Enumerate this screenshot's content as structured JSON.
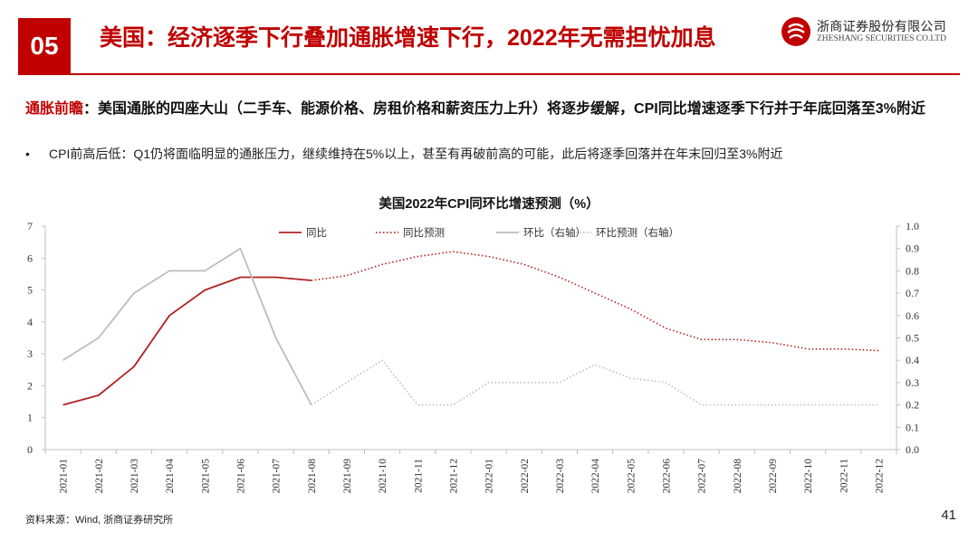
{
  "header": {
    "section_number": "05",
    "title": "美国：经济逐季下行叠加通胀增速下行，2022年无需担忧加息",
    "logo_cn": "浙商证券股份有限公司",
    "logo_en": "ZHESHANG SECURITIES CO.LTD"
  },
  "headline": {
    "lead": "通胀前瞻",
    "text": "：美国通胀的四座大山（二手车、能源价格、房租价格和薪资压力上升）将逐步缓解，CPI同比增速逐季下行并于年底回落至3%附近"
  },
  "bullet": {
    "marker": "•",
    "text": "CPI前高后低：Q1仍将面临明显的通胀压力，继续维持在5%以上，甚至有再破前高的可能，此后将逐季回落并在年末回归至3%附近"
  },
  "chart_data": {
    "type": "line",
    "title": "美国2022年CPI同环比增速预测（%）",
    "categories": [
      "2021-01",
      "2021-02",
      "2021-03",
      "2021-04",
      "2021-05",
      "2021-06",
      "2021-07",
      "2021-08",
      "2021-09",
      "2021-10",
      "2021-11",
      "2021-12",
      "2022-01",
      "2022-02",
      "2022-03",
      "2022-04",
      "2022-05",
      "2022-06",
      "2022-07",
      "2022-08",
      "2022-09",
      "2022-10",
      "2022-11",
      "2022-12"
    ],
    "left_axis": {
      "ylim": [
        0,
        7
      ],
      "ticks": [
        "0",
        "1",
        "2",
        "3",
        "4",
        "5",
        "6",
        "7"
      ]
    },
    "right_axis": {
      "ylim": [
        0,
        1.0
      ],
      "ticks": [
        "0.0",
        "0.1",
        "0.2",
        "0.3",
        "0.4",
        "0.5",
        "0.6",
        "0.7",
        "0.8",
        "0.9",
        "1.0"
      ]
    },
    "grid": false,
    "legend_position": "top",
    "series": [
      {
        "name": "同比",
        "axis": "left",
        "style": "solid",
        "color": "#b22222",
        "values": [
          1.4,
          1.7,
          2.6,
          4.2,
          5.0,
          5.4,
          5.4,
          5.3,
          null,
          null,
          null,
          null,
          null,
          null,
          null,
          null,
          null,
          null,
          null,
          null,
          null,
          null,
          null,
          null
        ]
      },
      {
        "name": "同比预测",
        "axis": "left",
        "style": "dotted",
        "color": "#b22222",
        "values": [
          null,
          null,
          null,
          null,
          null,
          null,
          null,
          5.3,
          5.45,
          5.8,
          6.05,
          6.2,
          6.05,
          5.8,
          5.4,
          4.9,
          4.4,
          3.8,
          3.45,
          3.45,
          3.35,
          3.15,
          3.15,
          3.1
        ]
      },
      {
        "name": "环比（右轴）",
        "axis": "right",
        "style": "solid",
        "color": "#bdbdbd",
        "values": [
          0.4,
          0.5,
          0.7,
          0.8,
          0.8,
          0.9,
          0.5,
          0.2,
          null,
          null,
          null,
          null,
          null,
          null,
          null,
          null,
          null,
          null,
          null,
          null,
          null,
          null,
          null,
          null
        ]
      },
      {
        "name": "环比预测（右轴）",
        "axis": "right",
        "style": "dotted",
        "color": "#bdbdbd",
        "values": [
          null,
          null,
          null,
          null,
          null,
          null,
          null,
          0.2,
          0.3,
          0.4,
          0.2,
          0.2,
          0.3,
          0.3,
          0.3,
          0.38,
          0.32,
          0.3,
          0.2,
          0.2,
          0.2,
          0.2,
          0.2,
          0.2
        ]
      }
    ]
  },
  "footer": {
    "source": "资料来源：Wind, 浙商证券研究所",
    "page_number": "41"
  }
}
